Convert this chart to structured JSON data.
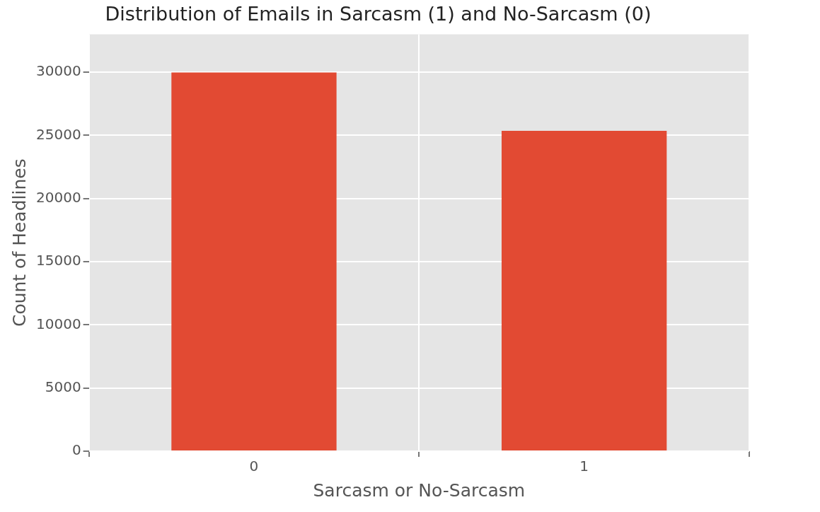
{
  "chart_data": {
    "type": "bar",
    "title": "Distribution of Emails in Sarcasm (1) and No-Sarcasm (0)",
    "xlabel": "Sarcasm or No-Sarcasm",
    "ylabel": "Count of Headlines",
    "categories": [
      "0",
      "1"
    ],
    "values": [
      29970,
      25358
    ],
    "color": "#e24a33",
    "ylim": [
      0,
      33000
    ],
    "yticks": [
      0,
      5000,
      10000,
      15000,
      20000,
      25000,
      30000
    ],
    "grid": true,
    "legend": false
  }
}
